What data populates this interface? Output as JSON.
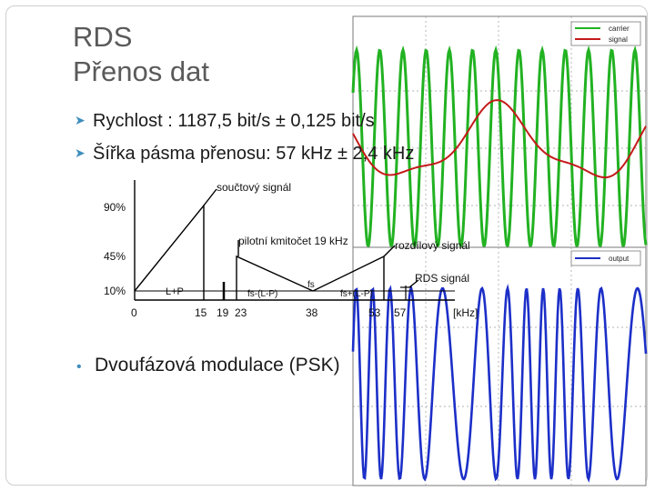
{
  "slide": {
    "title_line1": "RDS",
    "title_line2": "Přenos dat",
    "bullets": [
      "Rychlost : 1187,5 bit/s ± 0,125 bit/s",
      "Šířka pásma přenosu: 57 kHz ± 2,4 kHz",
      "Dvoufázová modulace (PSK)"
    ]
  },
  "spectrum": {
    "y_ticks": [
      "90%",
      "45%",
      "10%"
    ],
    "x_ticks": [
      "0",
      "15",
      "19",
      "23",
      "38",
      "53",
      "57",
      "[kHz]"
    ],
    "annotations": {
      "sum_signal": "součtový signál",
      "pilot": "pilotní kmitočet 19 kHz",
      "diff_signal": "rozdílový signál",
      "rds_signal": "RDS signál",
      "lp": "L+P",
      "fs_minus": "fs-(L-P)",
      "fs": "fs",
      "fs_plus": "fs+(L-P)"
    }
  },
  "plot_top": {
    "legend": [
      "carrier",
      "signal"
    ],
    "colors": {
      "carrier": "#22b222",
      "signal": "#c41a1a"
    }
  },
  "plot_bottom": {
    "legend": [
      "output"
    ],
    "colors": {
      "output": "#1c2fc8"
    }
  }
}
